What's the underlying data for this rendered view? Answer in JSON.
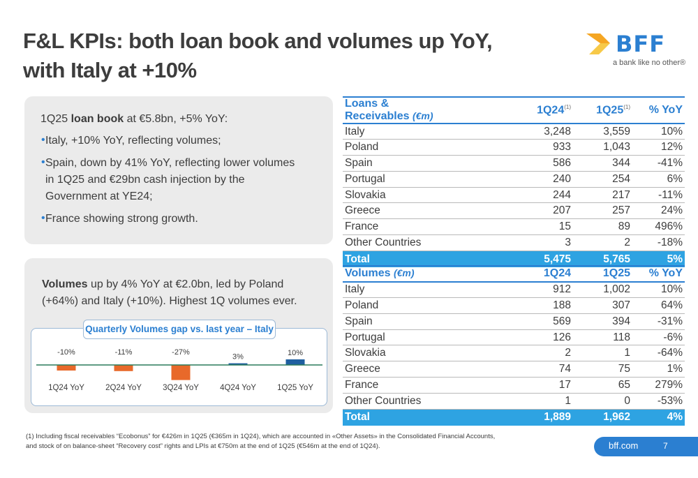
{
  "title": {
    "line1": "F&L KPIs: both loan book and volumes up YoY,",
    "line2": "with Italy at +10%"
  },
  "logo": {
    "text": "BFF",
    "tagline": "a bank like no other®"
  },
  "loan_box": {
    "headline_pre": "1Q25 ",
    "headline_bold": "loan book",
    "headline_post": " at €5.8bn, +5% YoY:",
    "bullets": [
      "Italy, +10% YoY, reflecting volumes;",
      "Spain, down by 41% YoY, reflecting lower volumes",
      "in 1Q25 and €29bn cash injection by the",
      "Government at YE24;",
      "France showing strong growth."
    ]
  },
  "volumes_box": {
    "bold": "Volumes",
    "text": " up by 4% YoY at €2.0bn, led by Poland (+64%) and Italy (+10%). Highest 1Q volumes ever."
  },
  "chart_data": {
    "type": "bar",
    "title": "Quarterly Volumes gap vs. last year – Italy",
    "categories": [
      "1Q24 YoY",
      "2Q24 YoY",
      "3Q24 YoY",
      "4Q24 YoY",
      "1Q25 YoY"
    ],
    "values": [
      -10,
      -11,
      -27,
      3,
      10
    ],
    "value_labels": [
      "-10%",
      "-11%",
      "-27%",
      "3%",
      "10%"
    ],
    "colors": {
      "negative": "#e8692a",
      "positive": "#1f5fa0",
      "axis": "#2a7a5a"
    }
  },
  "loans_table": {
    "header": {
      "label": "Loans & Receivables",
      "unit": "(€m)",
      "c1": "1Q24",
      "c2": "1Q25",
      "c3": "% YoY",
      "note": "(1)"
    },
    "rows": [
      [
        "Italy",
        "3,248",
        "3,559",
        "10%"
      ],
      [
        "Poland",
        "933",
        "1,043",
        "12%"
      ],
      [
        "Spain",
        "586",
        "344",
        "-41%"
      ],
      [
        "Portugal",
        "240",
        "254",
        "6%"
      ],
      [
        "Slovakia",
        "244",
        "217",
        "-11%"
      ],
      [
        "Greece",
        "207",
        "257",
        "24%"
      ],
      [
        "France",
        "15",
        "89",
        "496%"
      ],
      [
        "Other Countries",
        "3",
        "2",
        "-18%"
      ]
    ],
    "total": [
      "Total",
      "5,475",
      "5,765",
      "5%"
    ]
  },
  "volumes_table": {
    "header": {
      "label": "Volumes",
      "unit": "(€m)",
      "c1": "1Q24",
      "c2": "1Q25",
      "c3": "% YoY"
    },
    "rows": [
      [
        "Italy",
        "912",
        "1,002",
        "10%"
      ],
      [
        "Poland",
        "188",
        "307",
        "64%"
      ],
      [
        "Spain",
        "569",
        "394",
        "-31%"
      ],
      [
        "Portugal",
        "126",
        "118",
        "-6%"
      ],
      [
        "Slovakia",
        "2",
        "1",
        "-64%"
      ],
      [
        "Greece",
        "74",
        "75",
        "1%"
      ],
      [
        "France",
        "17",
        "65",
        "279%"
      ],
      [
        "Other Countries",
        "1",
        "0",
        "-53%"
      ]
    ],
    "total": [
      "Total",
      "1,889",
      "1,962",
      "4%"
    ]
  },
  "footnote": {
    "line1": "(1) Including fiscal receivables “Ecobonus” for €426m in 1Q25 (€365m in 1Q24), which are accounted in «Other Assets» in the Consolidated Financial Accounts,",
    "line2": "and stock of on balance-sheet “Recovery cost” rights and LPIs at €750m at the end of 1Q25 (€546m at the end of 1Q24)."
  },
  "footer": {
    "url": "bff.com",
    "page": "7"
  }
}
